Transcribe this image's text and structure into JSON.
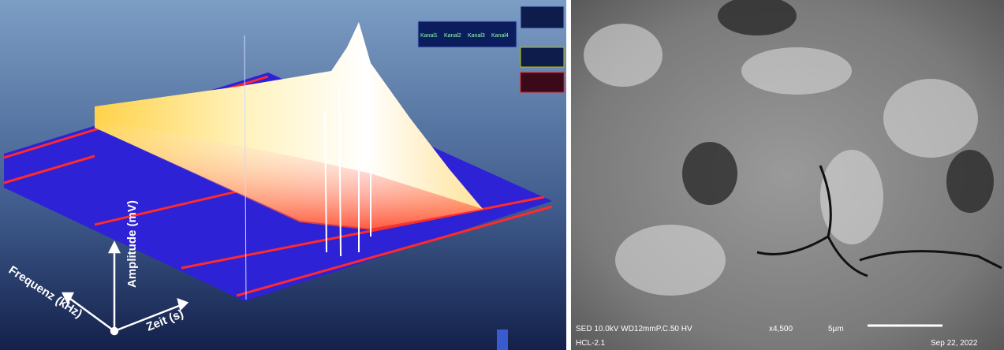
{
  "left_panel": {
    "axes": {
      "frequency": "Frequenz (kHz)",
      "amplitude": "Amplitude (mV)",
      "time": "Zeit (s)"
    },
    "legend_channels": [
      "Kanal1",
      "Kanal2",
      "Kanal3",
      "Kanal4"
    ]
  },
  "right_panel": {
    "info_line": "SED 10.0kV WD12mmP.C.50 HV",
    "magnification": "x4,500",
    "scale": "5μm",
    "sample": "HCL-2.1",
    "date": "Sep 22, 2022"
  }
}
